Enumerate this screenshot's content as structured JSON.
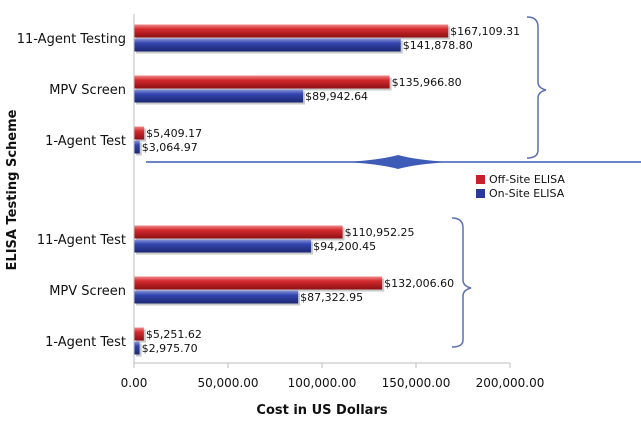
{
  "chart_data": {
    "type": "bar",
    "orientation": "horizontal",
    "xlabel": "Cost in US Dollars",
    "ylabel": "ELISA Testing Scheme",
    "xlim": [
      0,
      200000
    ],
    "xticks": [
      0,
      50000,
      100000,
      150000,
      200000
    ],
    "xtick_labels": [
      "0.00",
      "50,000.00",
      "100,000.00",
      "150,000.00",
      "200,000.00"
    ],
    "grid": false,
    "legend_position": "right",
    "colors": {
      "off_site": "#c8202a",
      "on_site": "#2b3a9a",
      "brace": "#5b6fb5"
    },
    "series": [
      {
        "name": "Off-Site ELISA",
        "key": "off"
      },
      {
        "name": "On-Site ELISA",
        "key": "on"
      }
    ],
    "categories": [
      {
        "label": "11-Agent Testing",
        "off": 167109.31,
        "on": 141878.8,
        "off_label": "$167,109.31",
        "on_label": "$141,878.80"
      },
      {
        "label": "MPV Screen",
        "off": 135966.8,
        "on": 89942.64,
        "off_label": "$135,966.80",
        "on_label": "$89,942.64"
      },
      {
        "label": "1-Agent Test",
        "off": 5409.17,
        "on": 3064.97,
        "off_label": "$5,409.17",
        "on_label": "$3,064.97"
      },
      {
        "label": "11-Agent Test",
        "off": 110952.25,
        "on": 94200.45,
        "off_label": "$110,952.25",
        "on_label": "$94,200.45"
      },
      {
        "label": "MPV Screen",
        "off": 132006.6,
        "on": 87322.95,
        "off_label": "$132,006.60",
        "on_label": "$87,322.95"
      },
      {
        "label": "1-Agent Test",
        "off": 5251.62,
        "on": 2975.7,
        "off_label": "$5,251.62",
        "on_label": "$2,975.70"
      }
    ]
  }
}
